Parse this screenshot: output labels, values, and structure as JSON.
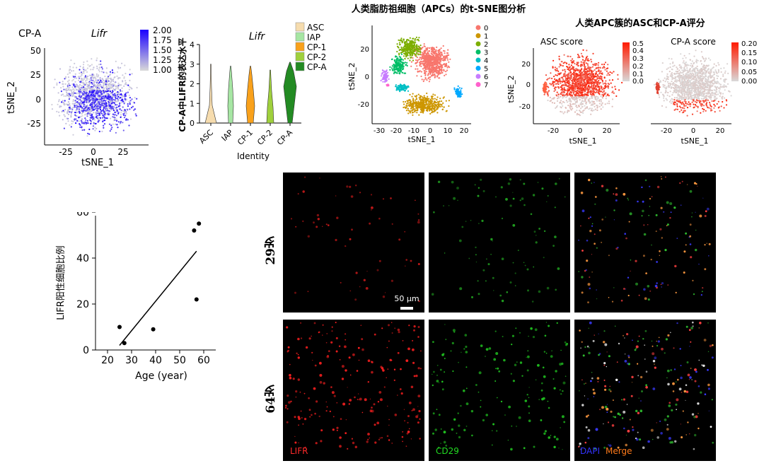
{
  "header": {
    "title": "人类脂肪祖细胞（APCs）的t-SNE图分析",
    "score_title": "人类APC簇的ASC和CP-A评分"
  },
  "tsne_lifr": {
    "panel_label": "CP-A",
    "gene_label": "Lifr",
    "xlabel": "tSNE_1",
    "ylabel": "tSNE_2",
    "x_ticks": [
      "-25",
      "0",
      "25"
    ],
    "y_ticks": [
      "50",
      "25",
      "0",
      "-25"
    ],
    "colorbar_ticks": [
      "2.00",
      "1.75",
      "1.50",
      "1.25",
      "1.00"
    ],
    "colorbar_range": [
      1.0,
      2.0
    ],
    "colors": {
      "low": "#d9d9d9",
      "high": "#1a00ff"
    }
  },
  "violin": {
    "gene_label": "Lifr",
    "xlabel": "Identity",
    "ylabel": "CP-A中LIFR的表达水平",
    "y_ticks": [
      "4",
      "3",
      "2",
      "1",
      "0"
    ],
    "legend": [
      {
        "name": "ASC",
        "color": "#f6dcae"
      },
      {
        "name": "IAP",
        "color": "#a6e6a3"
      },
      {
        "name": "CP-1",
        "color": "#f9a11b"
      },
      {
        "name": "CP-2",
        "color": "#9fd03c"
      },
      {
        "name": "CP-A",
        "color": "#238b23"
      }
    ]
  },
  "cluster_tsne": {
    "xlabel": "tSNE_1",
    "ylabel": "tSNE_2",
    "x_ticks": [
      "-30",
      "-20",
      "-10",
      "0",
      "10",
      "20"
    ],
    "y_ticks": [
      "20",
      "0",
      "-20"
    ],
    "legend": [
      {
        "name": "0",
        "color": "#f8766d"
      },
      {
        "name": "1",
        "color": "#cd9600"
      },
      {
        "name": "2",
        "color": "#7cae00"
      },
      {
        "name": "3",
        "color": "#00be67"
      },
      {
        "name": "4",
        "color": "#00bfc4"
      },
      {
        "name": "5",
        "color": "#00a9ff"
      },
      {
        "name": "6",
        "color": "#c77cff"
      },
      {
        "name": "7",
        "color": "#ff61cc"
      }
    ]
  },
  "asc_score": {
    "title": "ASC score",
    "xlabel": "tSNE_1",
    "ylabel": "tSNE_2",
    "x_ticks": [
      "-20",
      "0",
      "20"
    ],
    "y_ticks": [
      "20",
      "0",
      "-20"
    ],
    "colorbar_ticks": [
      "0.5",
      "0.4",
      "0.3",
      "0.2",
      "0.1",
      "0.0"
    ],
    "colorbar_range": [
      0.0,
      0.5
    ],
    "colors": {
      "low": "#d9d9d9",
      "high": "#ff1a00"
    }
  },
  "cpa_score": {
    "title": "CP-A score",
    "xlabel": "tSNE_1",
    "x_ticks": [
      "-20",
      "0",
      "20"
    ],
    "colorbar_ticks": [
      "0.20",
      "0.15",
      "0.10",
      "0.05",
      "0.00"
    ],
    "colorbar_range": [
      0.0,
      0.2
    ],
    "colors": {
      "low": "#d9d9d9",
      "high": "#ff1a00"
    }
  },
  "chart_data": [
    {
      "type": "scatter",
      "xlabel": "Age (year)",
      "ylabel": "LIFR阳性细胞比例",
      "xlim": [
        15,
        65
      ],
      "ylim": [
        0,
        60
      ],
      "x_ticks": [
        "20",
        "30",
        "40",
        "50",
        "60"
      ],
      "y_ticks": [
        "60",
        "40",
        "20",
        "0"
      ],
      "points": [
        {
          "x": 25,
          "y": 10
        },
        {
          "x": 27,
          "y": 3
        },
        {
          "x": 39,
          "y": 9
        },
        {
          "x": 56,
          "y": 52
        },
        {
          "x": 58,
          "y": 55
        },
        {
          "x": 57,
          "y": 22
        }
      ],
      "trendline": {
        "x1": 25,
        "y1": 2,
        "x2": 57,
        "y2": 43
      }
    },
    {
      "type": "violin",
      "categories": [
        "ASC",
        "IAP",
        "CP-1",
        "CP-2",
        "CP-A"
      ],
      "ylim": [
        0,
        4
      ],
      "values_max": [
        3.0,
        2.9,
        2.9,
        2.7,
        3.1
      ]
    }
  ],
  "microscopy": {
    "rows": [
      {
        "label": "29岁"
      },
      {
        "label": "64岁"
      }
    ],
    "channels": [
      {
        "name": "LIFR",
        "color": "#ff2a2a"
      },
      {
        "name": "CD29",
        "color": "#22dd22"
      },
      {
        "name": "DAPI",
        "color": "#3333ff"
      }
    ],
    "merge_label": "Merge",
    "merge_color": "#ff7a1a",
    "scalebar_label": "50 µm"
  }
}
